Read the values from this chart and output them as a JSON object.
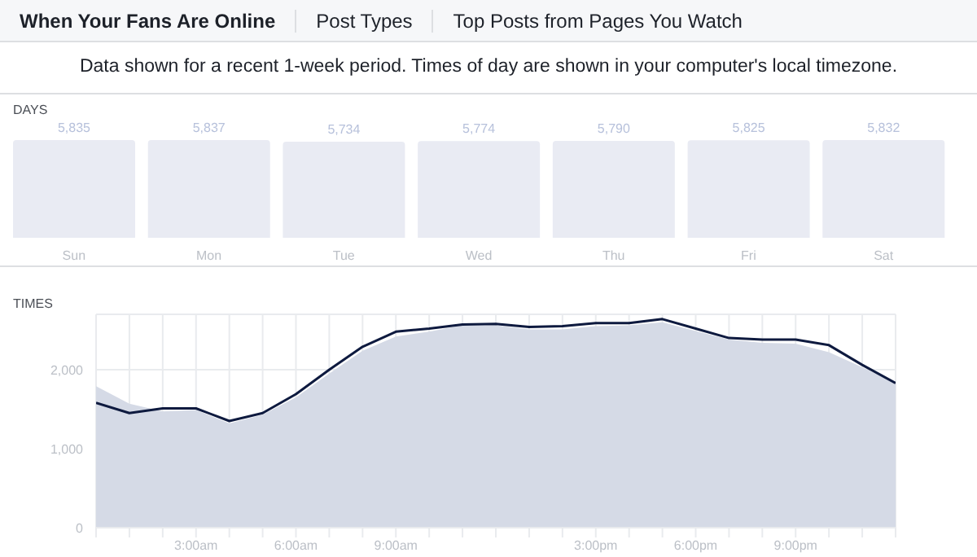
{
  "chart_data": [
    {
      "type": "bar",
      "title": "DAYS",
      "categories": [
        "Sun",
        "Mon",
        "Tue",
        "Wed",
        "Thu",
        "Fri",
        "Sat"
      ],
      "values": [
        5835,
        5837,
        5734,
        5774,
        5790,
        5825,
        5832
      ],
      "color": "#e9ebf3",
      "value_labels": [
        "5,835",
        "5,837",
        "5,734",
        "5,774",
        "5,790",
        "5,825",
        "5,832"
      ],
      "annotations": [
        "When Your Fans Are Online",
        "Post Types",
        "Top Posts from Pages You Watch",
        "Data shown for a recent 1-week period. Times of day are shown in your computer's local timezone."
      ]
    },
    {
      "type": "area",
      "title": "TIMES",
      "x": [
        0,
        1,
        2,
        3,
        4,
        5,
        6,
        7,
        8,
        9,
        10,
        11,
        12,
        13,
        14,
        15,
        16,
        17,
        18,
        19,
        20,
        21,
        22,
        23,
        24
      ],
      "series": [
        {
          "type": "area",
          "color": "#d5dae6",
          "values": [
            1790,
            1570,
            1470,
            1490,
            1320,
            1430,
            1650,
            1950,
            2240,
            2420,
            2480,
            2560,
            2560,
            2510,
            2510,
            2550,
            2560,
            2600,
            2490,
            2380,
            2340,
            2330,
            2220,
            2030,
            1830
          ]
        },
        {
          "type": "line",
          "color": "#0e1a3f",
          "values": [
            1580,
            1450,
            1510,
            1510,
            1350,
            1450,
            1690,
            2000,
            2290,
            2480,
            2520,
            2570,
            2580,
            2540,
            2550,
            2590,
            2590,
            2640,
            2520,
            2400,
            2380,
            2380,
            2310,
            2060,
            1830
          ]
        }
      ],
      "xlim": [
        0,
        24
      ],
      "xticks": [
        {
          "value": 0,
          "label": null
        },
        {
          "value": 1,
          "label": null
        },
        {
          "value": 2,
          "label": null
        },
        {
          "value": 3,
          "label": "3:00am"
        },
        {
          "value": 4,
          "label": null
        },
        {
          "value": 5,
          "label": null
        },
        {
          "value": 6,
          "label": "6:00am"
        },
        {
          "value": 7,
          "label": null
        },
        {
          "value": 8,
          "label": null
        },
        {
          "value": 9,
          "label": "9:00am"
        },
        {
          "value": 10,
          "label": null
        },
        {
          "value": 11,
          "label": null
        },
        {
          "value": 12,
          "label": null
        },
        {
          "value": 13,
          "label": null
        },
        {
          "value": 14,
          "label": null
        },
        {
          "value": 15,
          "label": "3:00pm"
        },
        {
          "value": 16,
          "label": null
        },
        {
          "value": 17,
          "label": null
        },
        {
          "value": 18,
          "label": "6:00pm"
        },
        {
          "value": 19,
          "label": null
        },
        {
          "value": 20,
          "label": null
        },
        {
          "value": 21,
          "label": "9:00pm"
        },
        {
          "value": 22,
          "label": null
        },
        {
          "value": 23,
          "label": null
        },
        {
          "value": 24,
          "label": null
        }
      ],
      "ylim": [
        0,
        2700
      ],
      "yticks": [
        {
          "value": 0,
          "label": "0"
        },
        {
          "value": 1000,
          "label": "1,000"
        },
        {
          "value": 2000,
          "label": "2,000"
        }
      ],
      "grid": true,
      "legend": false
    }
  ]
}
